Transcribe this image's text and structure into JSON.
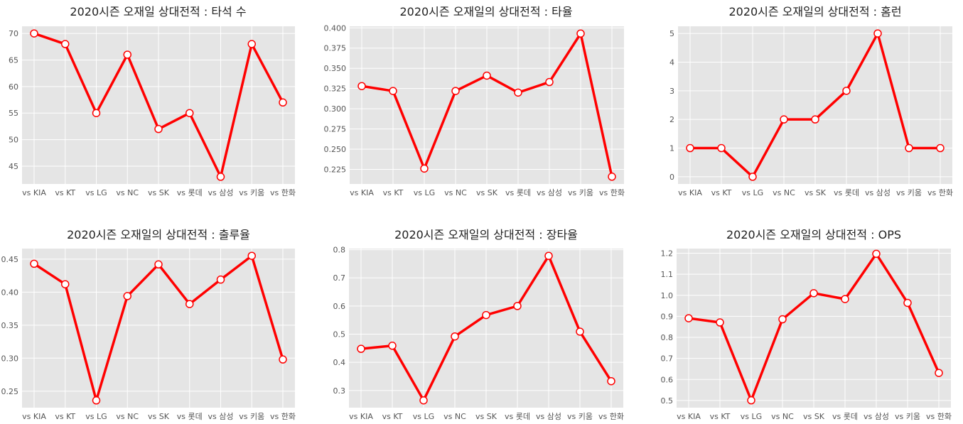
{
  "style": {
    "line_color": "#ff0000",
    "marker_face": "#ffffff",
    "plot_bg": "#e5e5e5",
    "grid_color": "#ffffff"
  },
  "chart_data": [
    {
      "type": "line",
      "title": "2020시즌 오재일 상대전적 : 타석 수",
      "categories": [
        "vs KIA",
        "vs KT",
        "vs LG",
        "vs NC",
        "vs SK",
        "vs 롯데",
        "vs 삼성",
        "vs 키움",
        "vs 한화"
      ],
      "values": [
        70,
        68,
        55,
        66,
        52,
        55,
        43,
        68,
        57
      ],
      "ylim": [
        41.65,
        71.35
      ],
      "yticks": [
        45,
        50,
        55,
        60,
        65,
        70
      ],
      "ytick_labels": [
        "45",
        "50",
        "55",
        "60",
        "65",
        "70"
      ],
      "grid": true
    },
    {
      "type": "line",
      "title": "2020시즌 오재일의 상대전적 : 타율",
      "categories": [
        "vs KIA",
        "vs KT",
        "vs LG",
        "vs NC",
        "vs SK",
        "vs 롯데",
        "vs 삼성",
        "vs 키움",
        "vs 한화"
      ],
      "values": [
        0.328,
        0.322,
        0.226,
        0.322,
        0.341,
        0.32,
        0.333,
        0.393,
        0.216
      ],
      "ylim": [
        0.207,
        0.402
      ],
      "yticks": [
        0.225,
        0.25,
        0.275,
        0.3,
        0.325,
        0.35,
        0.375,
        0.4
      ],
      "ytick_labels": [
        "0.225",
        "0.250",
        "0.275",
        "0.300",
        "0.325",
        "0.350",
        "0.375",
        "0.400"
      ],
      "grid": true
    },
    {
      "type": "line",
      "title": "2020시즌 오재일의 상대전적 : 홈런",
      "categories": [
        "vs KIA",
        "vs KT",
        "vs LG",
        "vs NC",
        "vs SK",
        "vs 롯데",
        "vs 삼성",
        "vs 키움",
        "vs 한화"
      ],
      "values": [
        1,
        1,
        0,
        2,
        2,
        3,
        5,
        1,
        1
      ],
      "ylim": [
        -0.25,
        5.25
      ],
      "yticks": [
        0,
        1,
        2,
        3,
        4,
        5
      ],
      "ytick_labels": [
        "0",
        "1",
        "2",
        "3",
        "4",
        "5"
      ],
      "grid": true
    },
    {
      "type": "line",
      "title": "2020시즌 오재일의 상대전적 : 출루율",
      "categories": [
        "vs KIA",
        "vs KT",
        "vs LG",
        "vs NC",
        "vs SK",
        "vs 롯데",
        "vs 삼성",
        "vs 키움",
        "vs 한화"
      ],
      "values": [
        0.443,
        0.412,
        0.236,
        0.394,
        0.442,
        0.382,
        0.419,
        0.455,
        0.298
      ],
      "ylim": [
        0.225,
        0.466
      ],
      "yticks": [
        0.25,
        0.3,
        0.35,
        0.4,
        0.45
      ],
      "ytick_labels": [
        "0.25",
        "0.30",
        "0.35",
        "0.40",
        "0.45"
      ],
      "grid": true
    },
    {
      "type": "line",
      "title": "2020시즌 오재일의 상대전적 : 장타율",
      "categories": [
        "vs KIA",
        "vs KT",
        "vs LG",
        "vs NC",
        "vs SK",
        "vs 롯데",
        "vs 삼성",
        "vs 키움",
        "vs 한화"
      ],
      "values": [
        0.448,
        0.459,
        0.265,
        0.492,
        0.568,
        0.6,
        0.778,
        0.509,
        0.333
      ],
      "ylim": [
        0.239,
        0.804
      ],
      "yticks": [
        0.3,
        0.4,
        0.5,
        0.6,
        0.7,
        0.8
      ],
      "ytick_labels": [
        "0.3",
        "0.4",
        "0.5",
        "0.6",
        "0.7",
        "0.8"
      ],
      "grid": true
    },
    {
      "type": "line",
      "title": "2020시즌 오재일의 상대전적 : OPS",
      "categories": [
        "vs KIA",
        "vs KT",
        "vs LG",
        "vs NC",
        "vs SK",
        "vs 롯데",
        "vs 삼성",
        "vs 키움",
        "vs 한화"
      ],
      "values": [
        0.891,
        0.871,
        0.501,
        0.886,
        1.01,
        0.982,
        1.197,
        0.964,
        0.631
      ],
      "ylim": [
        0.466,
        1.222
      ],
      "yticks": [
        0.5,
        0.6,
        0.7,
        0.8,
        0.9,
        1.0,
        1.1,
        1.2
      ],
      "ytick_labels": [
        "0.5",
        "0.6",
        "0.7",
        "0.8",
        "0.9",
        "1.0",
        "1.1",
        "1.2"
      ],
      "grid": true
    }
  ]
}
